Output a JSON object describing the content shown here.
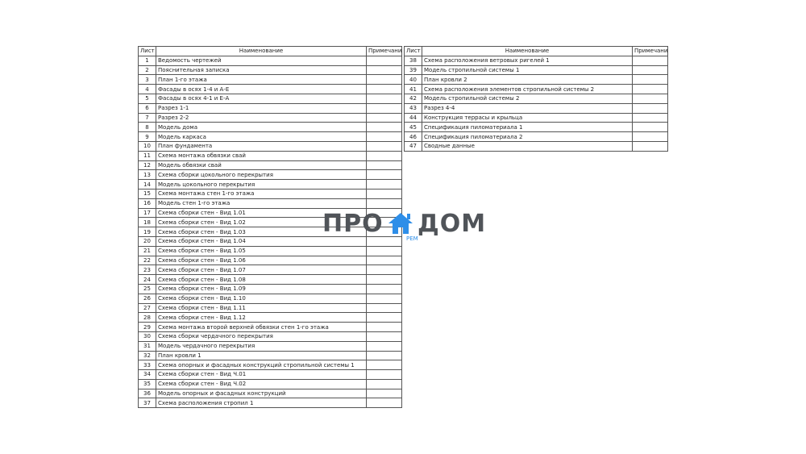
{
  "headers": {
    "sheet": "Лист",
    "name": "Наименование",
    "note": "Примечание"
  },
  "left_rows": [
    {
      "n": "1",
      "name": "Ведомость чертежей"
    },
    {
      "n": "2",
      "name": "Пояснительная записка"
    },
    {
      "n": "3",
      "name": "План 1-го этажа"
    },
    {
      "n": "4",
      "name": "Фасады в осях 1-4 и А-Е"
    },
    {
      "n": "5",
      "name": "Фасады в осях 4-1 и Е-А"
    },
    {
      "n": "6",
      "name": "Разрез 1-1"
    },
    {
      "n": "7",
      "name": "Разрез 2-2"
    },
    {
      "n": "8",
      "name": "Модель дома"
    },
    {
      "n": "9",
      "name": "Модель каркаса"
    },
    {
      "n": "10",
      "name": "План фундамента"
    },
    {
      "n": "11",
      "name": "Схема монтажа обвязки свай"
    },
    {
      "n": "12",
      "name": "Модель обвязки свай"
    },
    {
      "n": "13",
      "name": "Схема сборки цокольного перекрытия"
    },
    {
      "n": "14",
      "name": "Модель цокольного перекрытия"
    },
    {
      "n": "15",
      "name": "Схема монтажа стен 1-го этажа"
    },
    {
      "n": "16",
      "name": "Модель стен 1-го этажа"
    },
    {
      "n": "17",
      "name": "Схема сборки стен - Вид 1.01"
    },
    {
      "n": "18",
      "name": "Схема сборки стен - Вид 1.02"
    },
    {
      "n": "19",
      "name": "Схема сборки стен - Вид 1.03"
    },
    {
      "n": "20",
      "name": "Схема сборки стен - Вид 1.04"
    },
    {
      "n": "21",
      "name": "Схема сборки стен - Вид 1.05"
    },
    {
      "n": "22",
      "name": "Схема сборки стен - Вид 1.06"
    },
    {
      "n": "23",
      "name": "Схема сборки стен - Вид 1.07"
    },
    {
      "n": "24",
      "name": "Схема сборки стен - Вид 1.08"
    },
    {
      "n": "25",
      "name": "Схема сборки стен - Вид 1.09"
    },
    {
      "n": "26",
      "name": "Схема сборки стен - Вид 1.10"
    },
    {
      "n": "27",
      "name": "Схема сборки стен - Вид 1.11"
    },
    {
      "n": "28",
      "name": "Схема сборки стен - Вид 1.12"
    },
    {
      "n": "29",
      "name": "Схема монтажа второй верхней обвязки стен 1-го этажа"
    },
    {
      "n": "30",
      "name": "Схема сборки чердачного перекрытия"
    },
    {
      "n": "31",
      "name": "Модель чердачного перекрытия"
    },
    {
      "n": "32",
      "name": "План кровли 1"
    },
    {
      "n": "33",
      "name": "Схема опорных и фасадных конструкций стропильной системы 1"
    },
    {
      "n": "34",
      "name": "Схема сборки стен - Вид Ч.01"
    },
    {
      "n": "35",
      "name": "Схема сборки стен - Вид Ч.02"
    },
    {
      "n": "36",
      "name": "Модель опорных и фасадных конструкций"
    },
    {
      "n": "37",
      "name": "Схема расположения стропил 1"
    }
  ],
  "right_rows": [
    {
      "n": "38",
      "name": "Схема расположения ветровых ригелей 1"
    },
    {
      "n": "39",
      "name": "Модель стропильной системы 1"
    },
    {
      "n": "40",
      "name": "План кровли 2"
    },
    {
      "n": "41",
      "name": "Схема расположения элементов стропильной системы 2"
    },
    {
      "n": "42",
      "name": "Модель стропильной системы 2"
    },
    {
      "n": "43",
      "name": "Разрез 4-4"
    },
    {
      "n": "44",
      "name": "Конструкция террасы и крыльца"
    },
    {
      "n": "45",
      "name": "Спецификация пиломатериала 1"
    },
    {
      "n": "46",
      "name": "Спецификация пиломатериала 2"
    },
    {
      "n": "47",
      "name": "Сводные данные"
    }
  ],
  "logo": {
    "left": "ПРО",
    "right": "ДОМ",
    "sub": "РЕМ",
    "accent": "#2e8ee8"
  }
}
